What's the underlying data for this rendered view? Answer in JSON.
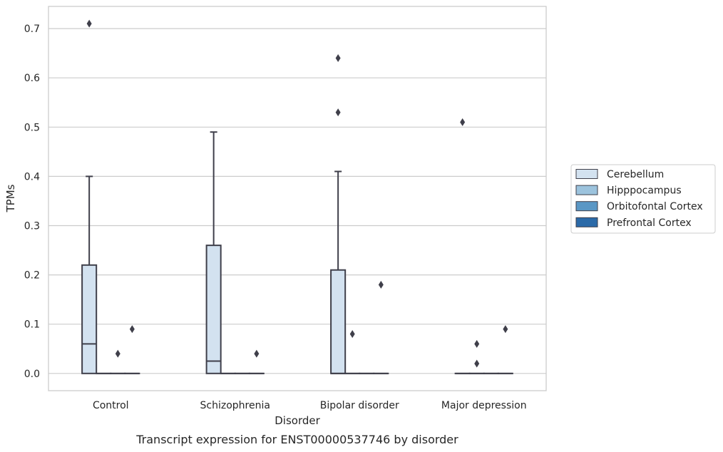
{
  "chart_data": {
    "type": "box",
    "caption": "Transcript expression for ENST00000537746 by disorder",
    "xlabel": "Disorder",
    "ylabel": "TPMs",
    "ylim": [
      -0.035,
      0.745
    ],
    "yticks": [
      0.0,
      0.1,
      0.2,
      0.3,
      0.4,
      0.5,
      0.6,
      0.7
    ],
    "ytick_labels": [
      "0.0",
      "0.1",
      "0.2",
      "0.3",
      "0.4",
      "0.5",
      "0.6",
      "0.7"
    ],
    "grid": "horizontal",
    "legend_position": "right",
    "categories": [
      "Control",
      "Schizophrenia",
      "Bipolar disorder",
      "Major depression"
    ],
    "series": [
      {
        "name": "Cerebellum",
        "color": "#d3e2f0",
        "boxes": [
          {
            "q1": 0.0,
            "median": 0.06,
            "q3": 0.22,
            "whisker_low": 0.0,
            "whisker_high": 0.4,
            "outliers": [
              0.71
            ]
          },
          {
            "q1": 0.0,
            "median": 0.025,
            "q3": 0.26,
            "whisker_low": 0.0,
            "whisker_high": 0.49,
            "outliers": []
          },
          {
            "q1": 0.0,
            "median": 0.0,
            "q3": 0.21,
            "whisker_low": 0.0,
            "whisker_high": 0.41,
            "outliers": [
              0.53,
              0.64
            ]
          },
          {
            "q1": 0.0,
            "median": 0.0,
            "q3": 0.0,
            "whisker_low": 0.0,
            "whisker_high": 0.0,
            "outliers": [
              0.51
            ]
          }
        ]
      },
      {
        "name": "Hipppocampus",
        "color": "#9cc3dd",
        "boxes": [
          {
            "q1": 0.0,
            "median": 0.0,
            "q3": 0.0,
            "whisker_low": 0.0,
            "whisker_high": 0.0,
            "outliers": []
          },
          {
            "q1": 0.0,
            "median": 0.0,
            "q3": 0.0,
            "whisker_low": 0.0,
            "whisker_high": 0.0,
            "outliers": []
          },
          {
            "q1": 0.0,
            "median": 0.0,
            "q3": 0.0,
            "whisker_low": 0.0,
            "whisker_high": 0.0,
            "outliers": [
              0.08
            ]
          },
          {
            "q1": 0.0,
            "median": 0.0,
            "q3": 0.0,
            "whisker_low": 0.0,
            "whisker_high": 0.0,
            "outliers": [
              0.02,
              0.06
            ]
          }
        ]
      },
      {
        "name": "Orbitofontal Cortex",
        "color": "#5a97c5",
        "boxes": [
          {
            "q1": 0.0,
            "median": 0.0,
            "q3": 0.0,
            "whisker_low": 0.0,
            "whisker_high": 0.0,
            "outliers": [
              0.04
            ]
          },
          {
            "q1": 0.0,
            "median": 0.0,
            "q3": 0.0,
            "whisker_low": 0.0,
            "whisker_high": 0.0,
            "outliers": []
          },
          {
            "q1": 0.0,
            "median": 0.0,
            "q3": 0.0,
            "whisker_low": 0.0,
            "whisker_high": 0.0,
            "outliers": []
          },
          {
            "q1": 0.0,
            "median": 0.0,
            "q3": 0.0,
            "whisker_low": 0.0,
            "whisker_high": 0.0,
            "outliers": []
          }
        ]
      },
      {
        "name": "Prefrontal Cortex",
        "color": "#2b6aa8",
        "boxes": [
          {
            "q1": 0.0,
            "median": 0.0,
            "q3": 0.0,
            "whisker_low": 0.0,
            "whisker_high": 0.0,
            "outliers": [
              0.09
            ]
          },
          {
            "q1": 0.0,
            "median": 0.0,
            "q3": 0.0,
            "whisker_low": 0.0,
            "whisker_high": 0.0,
            "outliers": [
              0.04
            ]
          },
          {
            "q1": 0.0,
            "median": 0.0,
            "q3": 0.0,
            "whisker_low": 0.0,
            "whisker_high": 0.0,
            "outliers": [
              0.18
            ]
          },
          {
            "q1": 0.0,
            "median": 0.0,
            "q3": 0.0,
            "whisker_low": 0.0,
            "whisker_high": 0.0,
            "outliers": [
              0.09
            ]
          }
        ]
      }
    ]
  }
}
